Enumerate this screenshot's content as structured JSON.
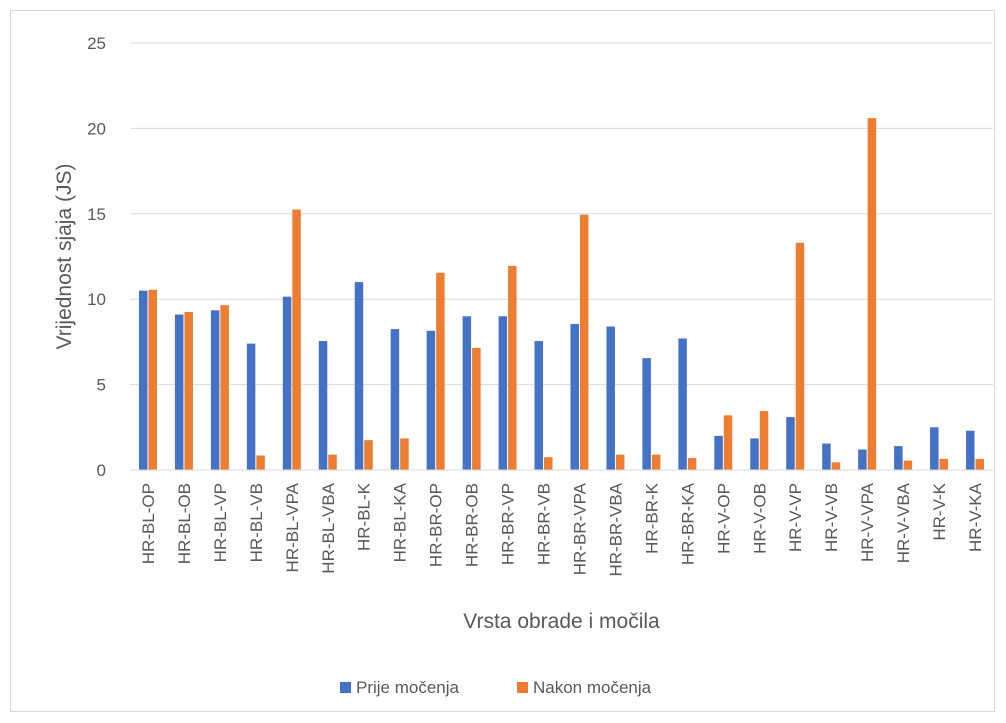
{
  "chart_data": {
    "type": "bar",
    "title": "",
    "xlabel": "Vrsta obrade i močila",
    "ylabel": "Vrijednost sjaja (JS)",
    "ylim": [
      0,
      25
    ],
    "yticks": [
      0,
      5,
      10,
      15,
      20,
      25
    ],
    "grid": true,
    "legend_position": "bottom",
    "categories": [
      "HR-BL-OP",
      "HR-BL-OB",
      "HR-BL-VP",
      "HR-BL-VB",
      "HR-BL-VPA",
      "HR-BL-VBA",
      "HR-BL-K",
      "HR-BL-KA",
      "HR-BR-OP",
      "HR-BR-OB",
      "HR-BR-VP",
      "HR-BR-VB",
      "HR-BR-VPA",
      "HR-BR-VBA",
      "HR-BR-K",
      "HR-BR-KA",
      "HR-V-OP",
      "HR-V-OB",
      "HR-V-VP",
      "HR-V-VB",
      "HR-V-VPA",
      "HR-V-VBA",
      "HR-V-K",
      "HR-V-KA"
    ],
    "series": [
      {
        "name": "Prije močenja",
        "color": "#4472C4",
        "values": [
          10.5,
          9.1,
          9.35,
          7.4,
          10.15,
          7.55,
          11.0,
          8.25,
          8.15,
          9.0,
          9.0,
          7.55,
          8.55,
          8.4,
          6.55,
          7.7,
          2.0,
          1.85,
          3.1,
          1.55,
          1.2,
          1.4,
          2.5,
          2.3
        ]
      },
      {
        "name": "Nakon močenja",
        "color": "#ED7D31",
        "values": [
          10.55,
          9.25,
          9.65,
          0.85,
          15.25,
          0.9,
          1.75,
          1.85,
          11.55,
          7.15,
          11.95,
          0.75,
          14.95,
          0.9,
          0.9,
          0.7,
          3.2,
          3.45,
          13.3,
          0.45,
          20.6,
          0.55,
          0.65,
          0.65
        ]
      }
    ]
  }
}
